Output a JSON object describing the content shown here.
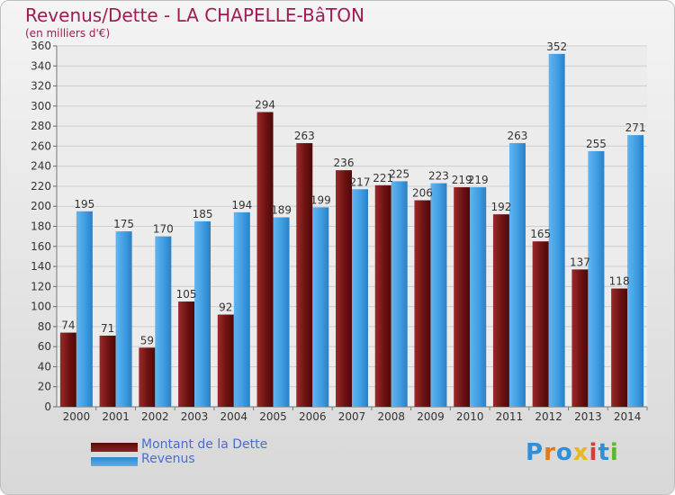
{
  "title": "Revenus/Dette - LA CHAPELLE-BâTON",
  "subtitle": "(en milliers d'€)",
  "logo": "Proxiti",
  "chart_data": {
    "type": "bar",
    "categories": [
      "2000",
      "2001",
      "2002",
      "2003",
      "2004",
      "2005",
      "2006",
      "2007",
      "2008",
      "2009",
      "2010",
      "2011",
      "2012",
      "2013",
      "2014"
    ],
    "series": [
      {
        "name": "Montant de la Dette",
        "color": "#7b1a1a",
        "values": [
          74,
          71,
          59,
          105,
          92,
          294,
          263,
          236,
          221,
          206,
          219,
          192,
          165,
          137,
          118
        ]
      },
      {
        "name": "Revenus",
        "color": "#4aa3e6",
        "values": [
          195,
          175,
          170,
          185,
          194,
          189,
          199,
          217,
          225,
          223,
          219,
          263,
          352,
          255,
          271
        ]
      }
    ],
    "ylim": [
      0,
      360
    ],
    "yticks": [
      0,
      20,
      40,
      60,
      80,
      100,
      120,
      140,
      160,
      180,
      200,
      220,
      240,
      260,
      280,
      300,
      320,
      340,
      360
    ],
    "grid": true,
    "legend_position": "bottom-left"
  }
}
